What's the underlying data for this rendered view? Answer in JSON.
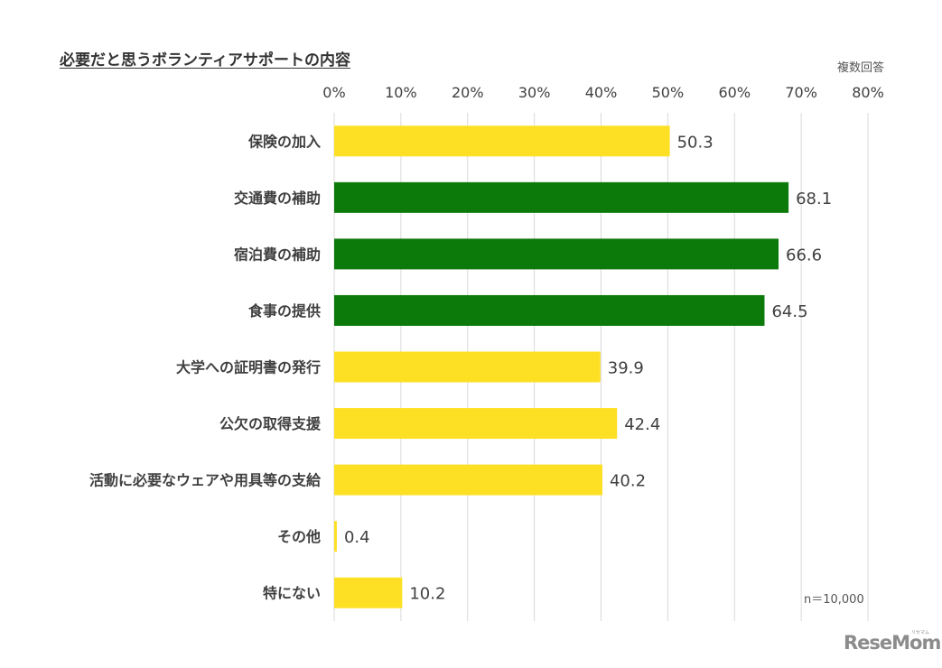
{
  "title": "必要だと思うボランティアサポートの内容",
  "note": "複数回答",
  "sample_size": "n＝10,000",
  "logo": {
    "text": "ReseMom",
    "kana": "リセマム"
  },
  "colors": {
    "highlight": "#0b7a0b",
    "default": "#fde023",
    "gridline": "#d9d9d9",
    "text": "#404040"
  },
  "chart_data": {
    "type": "bar",
    "orientation": "horizontal",
    "title": "必要だと思うボランティアサポートの内容",
    "xlim": [
      0,
      80
    ],
    "x_ticks": [
      "0%",
      "10%",
      "20%",
      "30%",
      "40%",
      "50%",
      "60%",
      "70%",
      "80%"
    ],
    "x_axis_position": "top",
    "grid": true,
    "categories": [
      "保険の加入",
      "交通費の補助",
      "宿泊費の補助",
      "食事の提供",
      "大学への証明書の発行",
      "公欠の取得支援",
      "活動に必要なウェアや用具等の支給",
      "その他",
      "特にない"
    ],
    "values": [
      50.3,
      68.1,
      66.6,
      64.5,
      39.9,
      42.4,
      40.2,
      0.4,
      10.2
    ],
    "value_labels": [
      "50.3",
      "68.1",
      "66.6",
      "64.5",
      "39.9",
      "42.4",
      "40.2",
      "0.4",
      "10.2"
    ],
    "bar_colors": [
      "#fde023",
      "#0b7a0b",
      "#0b7a0b",
      "#0b7a0b",
      "#fde023",
      "#fde023",
      "#fde023",
      "#fde023",
      "#fde023"
    ]
  }
}
